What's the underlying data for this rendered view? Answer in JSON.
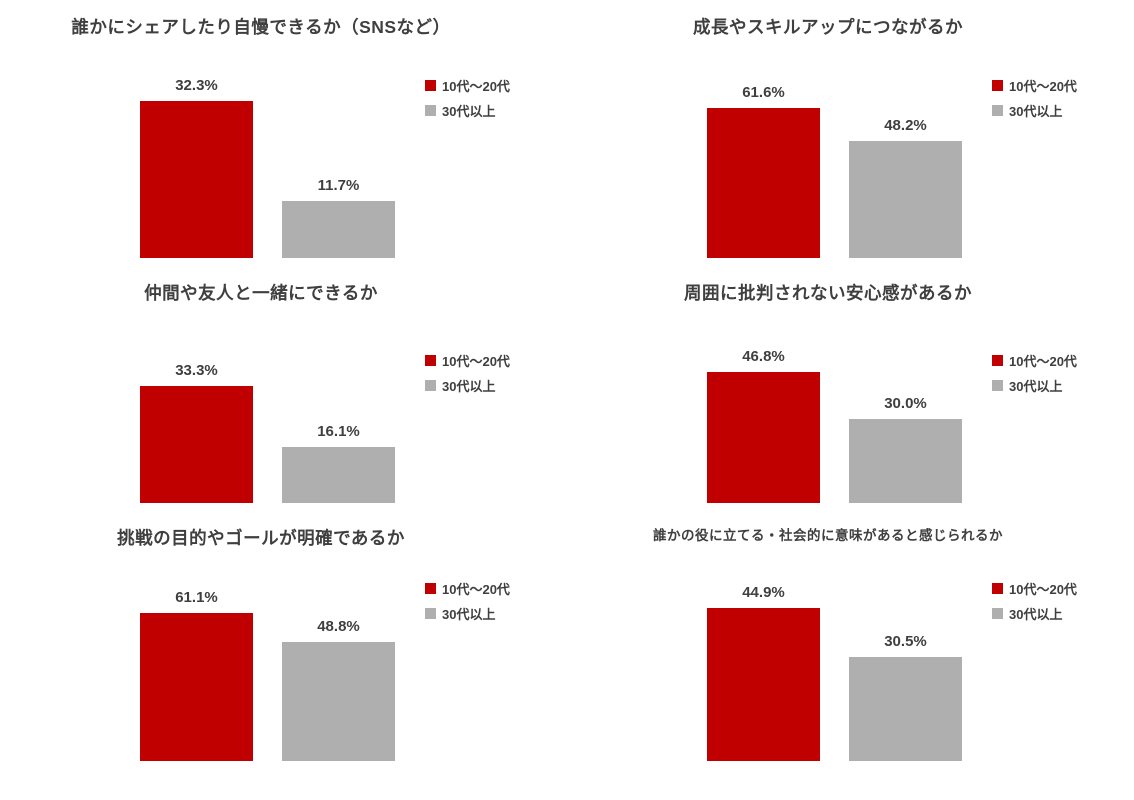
{
  "page": {
    "background": "#ffffff",
    "text_color": "#3f3f3f"
  },
  "colors": {
    "series1": "#c00000",
    "series2": "#afafaf"
  },
  "legend": {
    "series1_label": "10代〜20代",
    "series2_label": "30代以上",
    "position": "right"
  },
  "chart_data": [
    {
      "type": "bar",
      "title": "誰かにシェアしたり自慢できるか（SNSなど）",
      "categories": [
        "10代〜20代",
        "30代以上"
      ],
      "values": [
        32.3,
        11.7
      ],
      "data_labels": [
        "32.3%",
        "11.7%"
      ],
      "ylim": [
        0,
        35
      ],
      "legend_entries": [
        "10代〜20代",
        "30代以上"
      ],
      "grid": false,
      "axes_visible": false
    },
    {
      "type": "bar",
      "title": "成長やスキルアップにつながるか",
      "categories": [
        "10代〜20代",
        "30代以上"
      ],
      "values": [
        61.6,
        48.2
      ],
      "data_labels": [
        "61.6%",
        "48.2%"
      ],
      "ylim": [
        0,
        70
      ],
      "legend_entries": [
        "10代〜20代",
        "30代以上"
      ],
      "grid": false,
      "axes_visible": false
    },
    {
      "type": "bar",
      "title": "仲間や友人と一緒にできるか",
      "categories": [
        "10代〜20代",
        "30代以上"
      ],
      "values": [
        33.3,
        16.1
      ],
      "data_labels": [
        "33.3%",
        "16.1%"
      ],
      "ylim": [
        0,
        40
      ],
      "legend_entries": [
        "10代〜20代",
        "30代以上"
      ],
      "grid": false,
      "axes_visible": false
    },
    {
      "type": "bar",
      "title": "周囲に批判されない安心感があるか",
      "categories": [
        "10代〜20代",
        "30代以上"
      ],
      "values": [
        46.8,
        30.0
      ],
      "data_labels": [
        "46.8%",
        "30.0%"
      ],
      "ylim": [
        0,
        50
      ],
      "legend_entries": [
        "10代〜20代",
        "30代以上"
      ],
      "grid": false,
      "axes_visible": false
    },
    {
      "type": "bar",
      "title": "挑戦の目的やゴールが明確であるか",
      "categories": [
        "10代〜20代",
        "30代以上"
      ],
      "values": [
        61.1,
        48.8
      ],
      "data_labels": [
        "61.1%",
        "48.8%"
      ],
      "ylim": [
        0,
        70
      ],
      "legend_entries": [
        "10代〜20代",
        "30代以上"
      ],
      "grid": false,
      "axes_visible": false
    },
    {
      "type": "bar",
      "title": "誰かの役に立てる・社会的に意味があると感じられるか",
      "categories": [
        "10代〜20代",
        "30代以上"
      ],
      "values": [
        44.9,
        30.5
      ],
      "data_labels": [
        "44.9%",
        "30.5%"
      ],
      "ylim": [
        0,
        50
      ],
      "legend_entries": [
        "10代〜20代",
        "30代以上"
      ],
      "grid": false,
      "axes_visible": false
    }
  ]
}
